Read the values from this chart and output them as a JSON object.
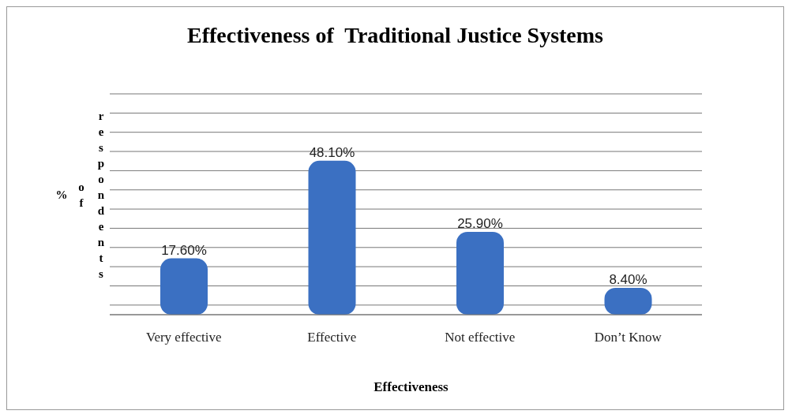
{
  "chart_data": {
    "type": "bar",
    "title": "Effectiveness of  Traditional Justice Systems",
    "xlabel": "Effectiveness",
    "ylabel": "% of respondents",
    "categories": [
      "Very effective",
      "Effective",
      "Not effective",
      "Don’t Know"
    ],
    "values": [
      17.6,
      48.1,
      25.9,
      8.4
    ],
    "value_labels": [
      "17.60%",
      "48.10%",
      "25.90%",
      "8.40%"
    ],
    "color": "#3b70c2",
    "grid": "y"
  }
}
